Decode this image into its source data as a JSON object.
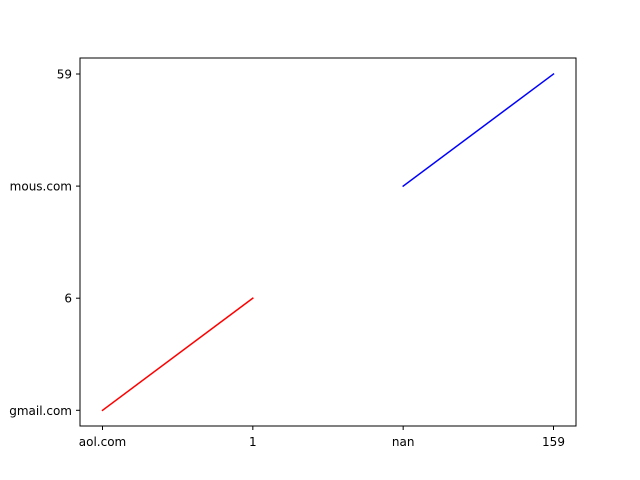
{
  "chart_data": {
    "type": "line",
    "title": "",
    "xlabel": "",
    "ylabel": "",
    "grid": false,
    "legend": "none",
    "x_categories": [
      "aol.com",
      "1",
      "nan",
      "159"
    ],
    "y_categories": [
      "gmail.com",
      "6",
      "mous.com",
      "59"
    ],
    "series": [
      {
        "color": "#ff0000",
        "points": [
          {
            "x": "aol.com",
            "y": "gmail.com"
          },
          {
            "x": "1",
            "y": "6"
          }
        ]
      },
      {
        "color": "#0000ff",
        "points": [
          {
            "x": "nan",
            "y": "mous.com"
          },
          {
            "x": "159",
            "y": "59"
          }
        ]
      }
    ]
  }
}
